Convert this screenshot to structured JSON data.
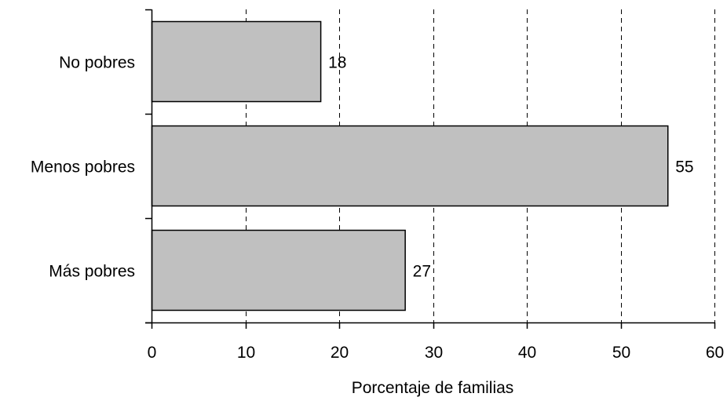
{
  "chart_data": {
    "type": "bar",
    "orientation": "horizontal",
    "categories": [
      "No pobres",
      "Menos pobres",
      "Más pobres"
    ],
    "values": [
      18,
      55,
      27
    ],
    "data_labels": [
      "18",
      "55",
      "27"
    ],
    "xlabel": "Porcentaje de familias",
    "ylabel": "",
    "xlim": [
      0,
      60
    ],
    "xticks": [
      0,
      10,
      20,
      30,
      40,
      50,
      60
    ],
    "xtick_labels": [
      "0",
      "10",
      "20",
      "30",
      "40",
      "50",
      "60"
    ],
    "grid": "vertical dashed",
    "legend": "none",
    "colors": {
      "bar_fill": "#c0c0c0",
      "bar_stroke": "#000000",
      "grid": "#000000",
      "axis": "#000000"
    }
  }
}
